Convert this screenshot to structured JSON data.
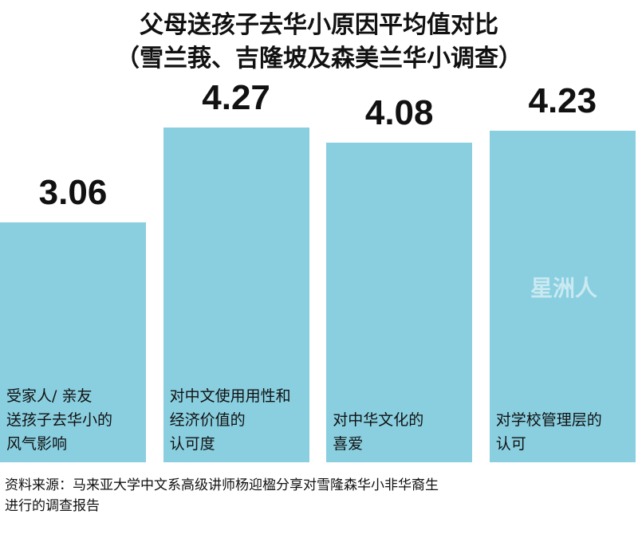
{
  "chart_data": {
    "type": "bar",
    "title": "父母送孩子去华小原因平均值对比",
    "subtitle": "（雪兰莪、吉隆坡及森美兰华小调查）",
    "categories": [
      "受家人/ 亲友\n送孩子去华小的\n风气影响",
      "对中文使用用性和\n经济价值的\n认可度",
      "对中华文化的\n喜爱",
      "对学校管理层的\n认可"
    ],
    "values": [
      3.06,
      4.27,
      4.08,
      4.23
    ],
    "color": "#89cfe0",
    "watermark": "星洲人",
    "source": "资料来源：马来亚大学中文系高级讲师杨迎楹分享对雪隆森华小非华裔生\n进行的调查报告"
  }
}
